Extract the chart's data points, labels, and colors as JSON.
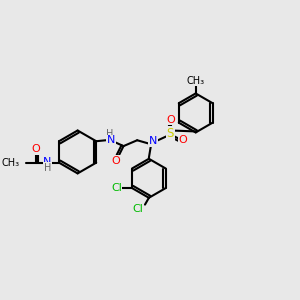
{
  "background_color": "#e8e8e8",
  "bond_color": "#000000",
  "bond_width": 1.5,
  "atom_colors": {
    "C": "#000000",
    "N": "#0000ff",
    "O": "#ff0000",
    "S": "#cccc00",
    "Cl": "#00bb00",
    "H": "#666666"
  },
  "font_size": 7.5,
  "bold_font_size": 8.5
}
